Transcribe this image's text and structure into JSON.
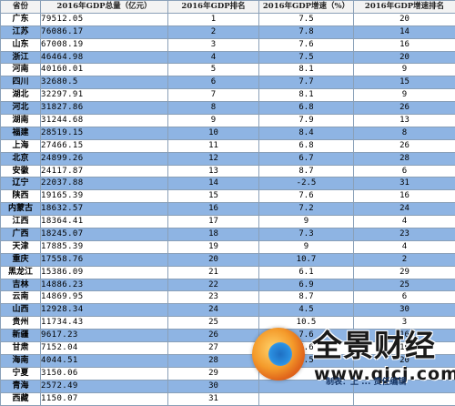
{
  "table": {
    "headers": [
      "省份",
      "2016年GDP总量（亿元）",
      "2016年GDP排名",
      "2016年GDP增速（%）",
      "2016年GDP增速排名"
    ],
    "rows": [
      [
        "广东",
        "79512.05",
        "1",
        "7.5",
        "20"
      ],
      [
        "江苏",
        "76086.17",
        "2",
        "7.8",
        "14"
      ],
      [
        "山东",
        "67008.19",
        "3",
        "7.6",
        "16"
      ],
      [
        "浙江",
        "46464.98",
        "4",
        "7.5",
        "20"
      ],
      [
        "河南",
        "40160.01",
        "5",
        "8.1",
        "9"
      ],
      [
        "四川",
        "32680.5",
        "6",
        "7.7",
        "15"
      ],
      [
        "湖北",
        "32297.91",
        "7",
        "8.1",
        "9"
      ],
      [
        "河北",
        "31827.86",
        "8",
        "6.8",
        "26"
      ],
      [
        "湖南",
        "31244.68",
        "9",
        "7.9",
        "13"
      ],
      [
        "福建",
        "28519.15",
        "10",
        "8.4",
        "8"
      ],
      [
        "上海",
        "27466.15",
        "11",
        "6.8",
        "26"
      ],
      [
        "北京",
        "24899.26",
        "12",
        "6.7",
        "28"
      ],
      [
        "安徽",
        "24117.87",
        "13",
        "8.7",
        "6"
      ],
      [
        "辽宁",
        "22037.88",
        "14",
        "-2.5",
        "31"
      ],
      [
        "陕西",
        "19165.39",
        "15",
        "7.6",
        "16"
      ],
      [
        "内蒙古",
        "18632.57",
        "16",
        "7.2",
        "24"
      ],
      [
        "江西",
        "18364.41",
        "17",
        "9",
        "4"
      ],
      [
        "广西",
        "18245.07",
        "18",
        "7.3",
        "23"
      ],
      [
        "天津",
        "17885.39",
        "19",
        "9",
        "4"
      ],
      [
        "重庆",
        "17558.76",
        "20",
        "10.7",
        "2"
      ],
      [
        "黑龙江",
        "15386.09",
        "21",
        "6.1",
        "29"
      ],
      [
        "吉林",
        "14886.23",
        "22",
        "6.9",
        "25"
      ],
      [
        "云南",
        "14869.95",
        "23",
        "8.7",
        "6"
      ],
      [
        "山西",
        "12928.34",
        "24",
        "4.5",
        "30"
      ],
      [
        "贵州",
        "11734.43",
        "25",
        "10.5",
        "3"
      ],
      [
        "新疆",
        "9617.23",
        "26",
        "7.6",
        "16"
      ],
      [
        "甘肃",
        "7152.04",
        "27",
        "7.6",
        "16"
      ],
      [
        "海南",
        "4044.51",
        "28",
        "7.5",
        "20"
      ],
      [
        "宁夏",
        "3150.06",
        "29",
        "",
        ""
      ],
      [
        "青海",
        "2572.49",
        "30",
        "",
        ""
      ],
      [
        "西藏",
        "1150.07",
        "31",
        "",
        ""
      ]
    ]
  },
  "watermark": {
    "title": "全景财经",
    "url": "www.qjcj.com",
    "source_note": "制表：上 ... 责任编辑"
  },
  "colors": {
    "band_blue": "#8eb4e3",
    "grid_line": "#8aa0b8",
    "logo_orange": "#f49a2a",
    "logo_blue": "#2b8fe0"
  }
}
